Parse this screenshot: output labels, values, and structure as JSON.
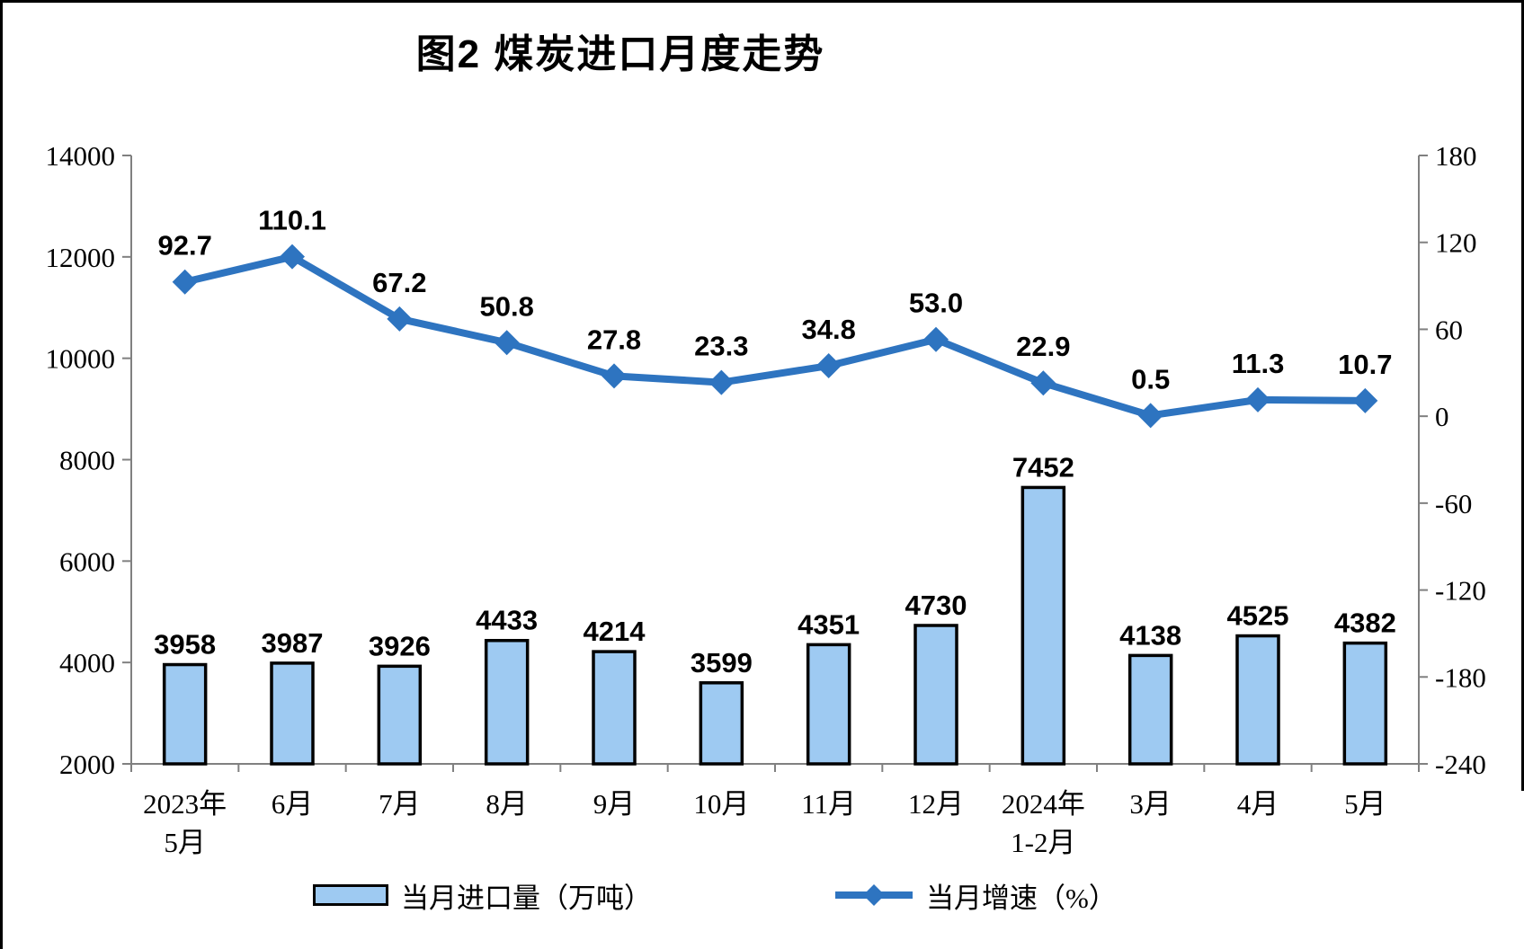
{
  "chart_data": {
    "type": "combo-bar-line",
    "title": "图2 煤炭进口月度走势",
    "categories": [
      {
        "line1": "2023年",
        "line2": "5月"
      },
      {
        "line1": "6月",
        "line2": ""
      },
      {
        "line1": "7月",
        "line2": ""
      },
      {
        "line1": "8月",
        "line2": ""
      },
      {
        "line1": "9月",
        "line2": ""
      },
      {
        "line1": "10月",
        "line2": ""
      },
      {
        "line1": "11月",
        "line2": ""
      },
      {
        "line1": "12月",
        "line2": ""
      },
      {
        "line1": "2024年",
        "line2": "1-2月"
      },
      {
        "line1": "3月",
        "line2": ""
      },
      {
        "line1": "4月",
        "line2": ""
      },
      {
        "line1": "5月",
        "line2": ""
      }
    ],
    "series": [
      {
        "name": "当月进口量（万吨）",
        "type": "bar",
        "axis": "left",
        "values": [
          3958,
          3987,
          3926,
          4433,
          4214,
          3599,
          4351,
          4730,
          7452,
          4138,
          4525,
          4382
        ],
        "labels": [
          "3958",
          "3987",
          "3926",
          "4433",
          "4214",
          "3599",
          "4351",
          "4730",
          "7452",
          "4138",
          "4525",
          "4382"
        ],
        "fill": "#9ECAF2",
        "stroke": "#000000"
      },
      {
        "name": "当月增速（%）",
        "type": "line",
        "axis": "right",
        "values": [
          92.7,
          110.1,
          67.2,
          50.8,
          27.8,
          23.3,
          34.8,
          53.0,
          22.9,
          0.5,
          11.3,
          10.7
        ],
        "labels": [
          "92.7",
          "110.1",
          "67.2",
          "50.8",
          "27.8",
          "23.3",
          "34.8",
          "53.0",
          "22.9",
          "0.5",
          "11.3",
          "10.7"
        ],
        "color": "#2E74C0"
      }
    ],
    "left_axis": {
      "min": 2000,
      "max": 14000,
      "step": 2000,
      "tick_labels": [
        "14000",
        "12000",
        "10000",
        "8000",
        "6000",
        "4000",
        "2000"
      ]
    },
    "right_axis": {
      "min": -240,
      "max": 180,
      "step": 60,
      "tick_labels": [
        "180",
        "120",
        "60",
        "0",
        "-60",
        "-120",
        "-180",
        "-240"
      ]
    },
    "grid": false,
    "legend_position": "bottom",
    "axis_color": "#808080",
    "text_color": "#000000",
    "background": "#ffffff"
  }
}
